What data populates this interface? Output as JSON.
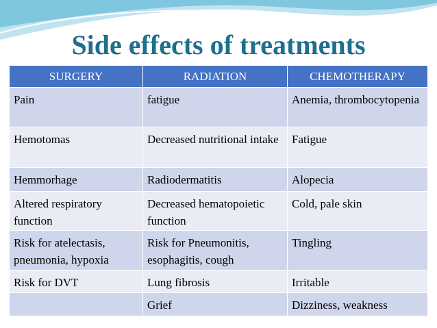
{
  "title": "Side effects of treatments",
  "table": {
    "header": [
      "SURGERY",
      "RADIATION",
      "CHEMOTHERAPY"
    ],
    "rows": [
      [
        "Pain",
        "fatigue",
        "Anemia, thrombocytopenia"
      ],
      [
        "Hemotomas",
        "Decreased nutritional intake",
        "Fatigue"
      ],
      [
        "Hemmorhage",
        "Radiodermatitis",
        "Alopecia"
      ],
      [
        "Altered respiratory function",
        "Decreased hematopoietic function",
        "Cold, pale skin"
      ],
      [
        "Risk for atelectasis, pneumonia, hypoxia",
        "Risk for Pneumonitis, esophagitis, cough",
        "Tingling"
      ],
      [
        "Risk for DVT",
        "Lung fibrosis",
        "Irritable"
      ],
      [
        null,
        "Grief",
        "Dizziness, weakness"
      ]
    ]
  }
}
